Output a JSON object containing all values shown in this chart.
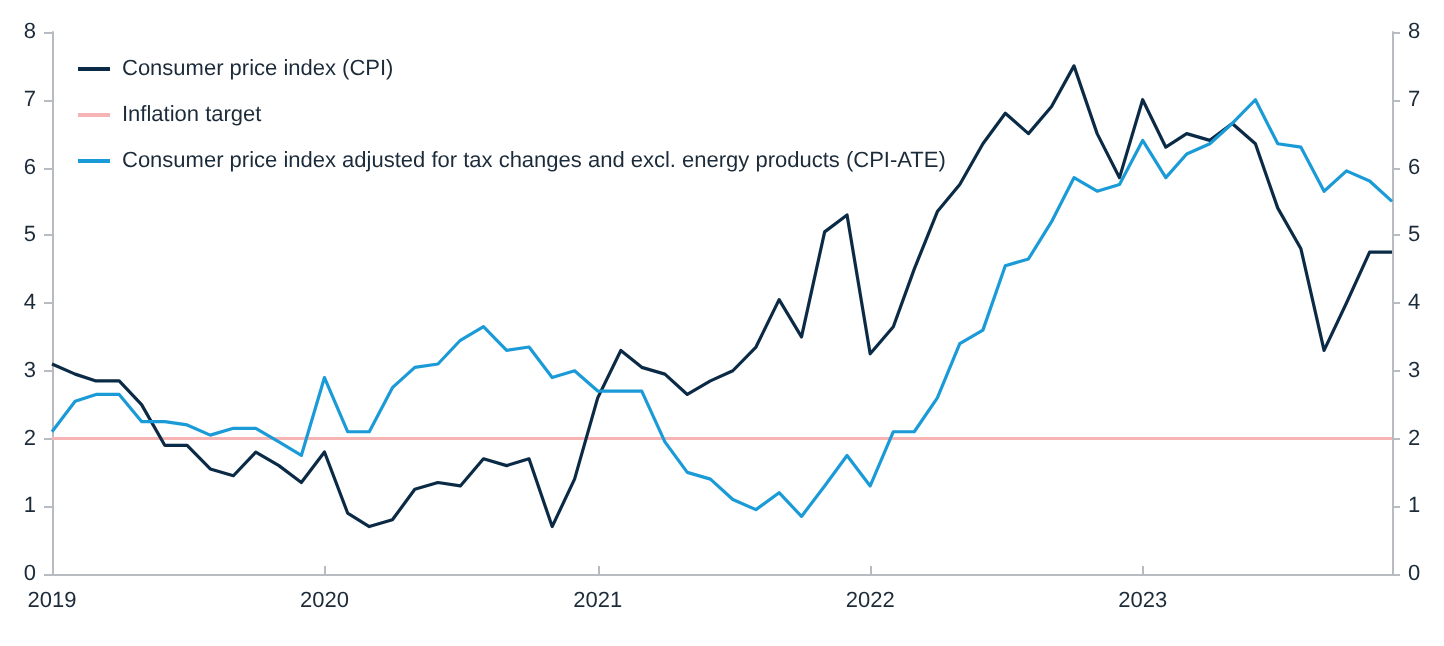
{
  "chart_data": {
    "type": "line",
    "x": [
      "2019-01",
      "2019-02",
      "2019-03",
      "2019-04",
      "2019-05",
      "2019-06",
      "2019-07",
      "2019-08",
      "2019-09",
      "2019-10",
      "2019-11",
      "2019-12",
      "2020-01",
      "2020-02",
      "2020-03",
      "2020-04",
      "2020-05",
      "2020-06",
      "2020-07",
      "2020-08",
      "2020-09",
      "2020-10",
      "2020-11",
      "2020-12",
      "2021-01",
      "2021-02",
      "2021-03",
      "2021-04",
      "2021-05",
      "2021-06",
      "2021-07",
      "2021-08",
      "2021-09",
      "2021-10",
      "2021-11",
      "2021-12",
      "2022-01",
      "2022-02",
      "2022-03",
      "2022-04",
      "2022-05",
      "2022-06",
      "2022-07",
      "2022-08",
      "2022-09",
      "2022-10",
      "2022-11",
      "2022-12",
      "2023-01",
      "2023-02",
      "2023-03",
      "2023-04",
      "2023-05",
      "2023-06",
      "2023-07",
      "2023-08",
      "2023-09",
      "2023-10",
      "2023-11",
      "2023-12"
    ],
    "series": [
      {
        "name": "Consumer price index (CPI)",
        "color": "#0b2a45",
        "values": [
          3.1,
          2.95,
          2.85,
          2.85,
          2.5,
          1.9,
          1.9,
          1.55,
          1.45,
          1.8,
          1.6,
          1.35,
          1.8,
          0.9,
          0.7,
          0.8,
          1.25,
          1.35,
          1.3,
          1.7,
          1.6,
          1.7,
          0.7,
          1.4,
          2.6,
          3.3,
          3.05,
          2.95,
          2.65,
          2.85,
          3.0,
          3.35,
          4.05,
          3.5,
          5.05,
          5.3,
          3.25,
          3.65,
          4.5,
          5.35,
          5.75,
          6.35,
          6.8,
          6.5,
          6.9,
          7.5,
          6.5,
          5.85,
          7.0,
          6.3,
          6.5,
          6.4,
          6.65,
          6.35,
          5.4,
          4.8,
          3.3,
          4.0,
          4.75,
          4.75
        ]
      },
      {
        "name": "Consumer price index adjusted for tax changes and excl. energy products (CPI-ATE)",
        "color": "#1a9ad6",
        "values": [
          2.1,
          2.55,
          2.65,
          2.65,
          2.25,
          2.25,
          2.2,
          2.05,
          2.15,
          2.15,
          1.95,
          1.75,
          2.9,
          2.1,
          2.1,
          2.75,
          3.05,
          3.1,
          3.45,
          3.65,
          3.3,
          3.35,
          2.9,
          3.0,
          2.7,
          2.7,
          2.7,
          1.95,
          1.5,
          1.4,
          1.1,
          0.95,
          1.2,
          0.85,
          1.3,
          1.75,
          1.3,
          2.1,
          2.1,
          2.6,
          3.4,
          3.6,
          4.55,
          4.65,
          5.2,
          5.85,
          5.65,
          5.75,
          6.4,
          5.85,
          6.2,
          6.35,
          6.65,
          7.0,
          6.35,
          6.3,
          5.65,
          5.95,
          5.8,
          5.5
        ]
      }
    ],
    "ref_lines": [
      {
        "axis": "y",
        "value": 2,
        "label": "Inflation target",
        "color": "#f7b4b4"
      }
    ],
    "xlim": [
      "2019-01",
      "2023-12"
    ],
    "xticks": [
      "2019",
      "2020",
      "2021",
      "2022",
      "2023"
    ],
    "ylim": [
      0,
      8
    ],
    "yticks": [
      0,
      1,
      2,
      3,
      4,
      5,
      6,
      7,
      8
    ],
    "y2lim": [
      0,
      8
    ],
    "y2ticks": [
      0,
      1,
      2,
      3,
      4,
      5,
      6,
      7,
      8
    ],
    "legend": "top left"
  }
}
